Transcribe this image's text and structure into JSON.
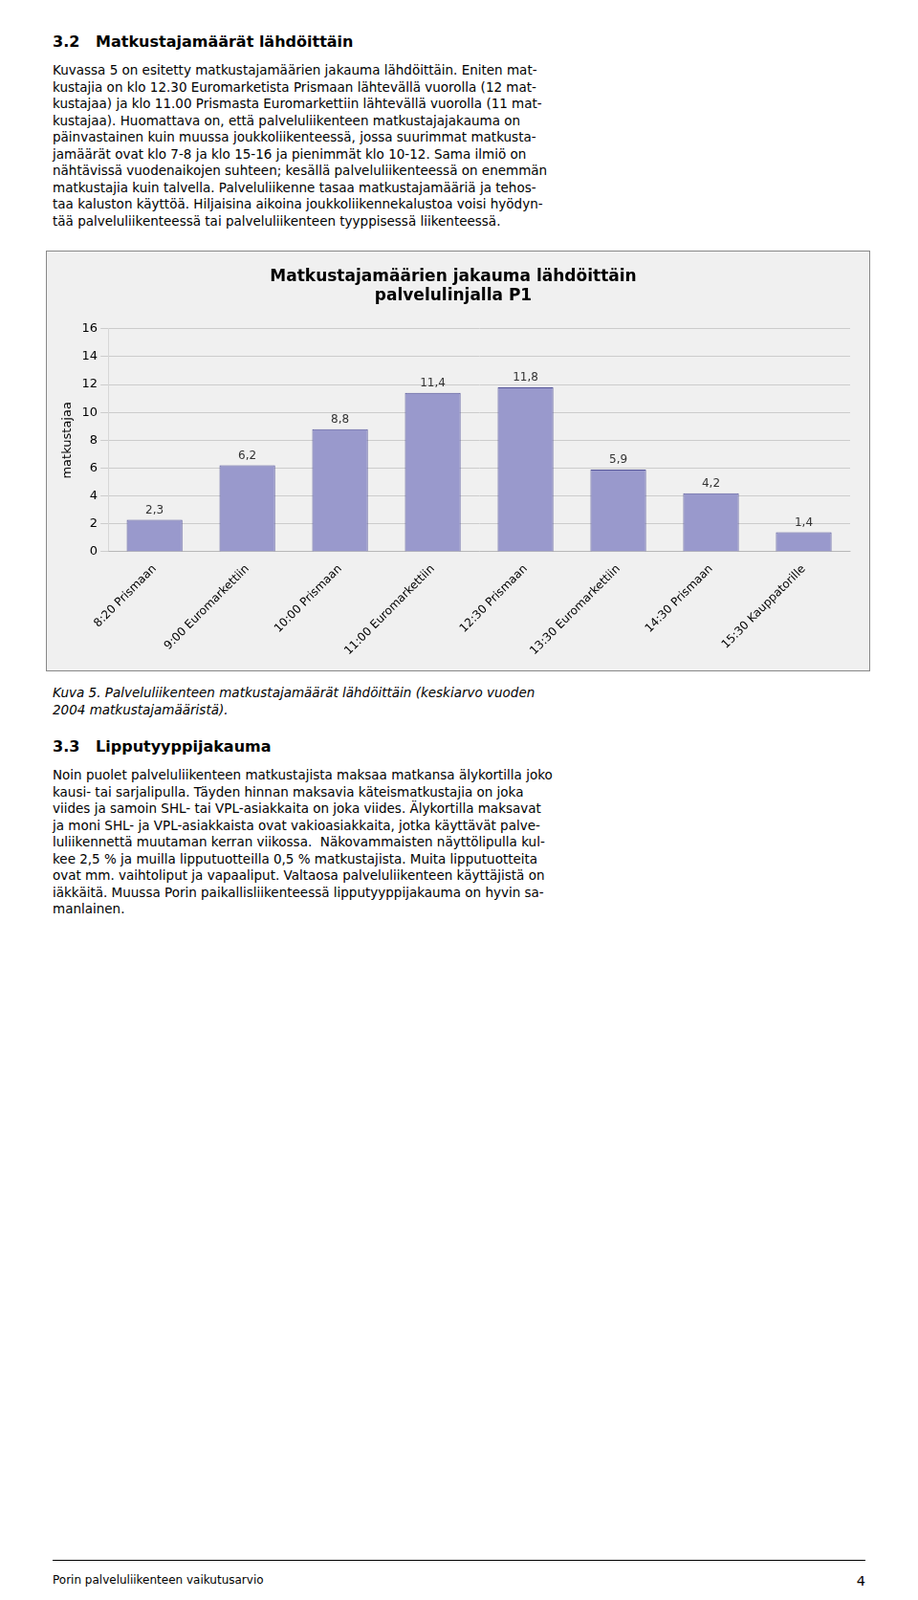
{
  "heading1": "3.2   Matkustajamäärät lähdöittäin",
  "para1": [
    "Kuvassa 5 on esitetty matkustajamäärien jakauma lähdöittäin. Eniten mat-",
    "kustajia on klo 12.30 Euromarketista Prismaan lähtevällä vuorolla (12 mat-",
    "kustajaa) ja klo 11.00 Prismasta Euromarkettiin lähtevällä vuorolla (11 mat-",
    "kustajaa). Huomattava on, että palveluliikenteen matkustajajakauma on",
    "päinvastainen kuin muussa joukkoliikenteessä, jossa suurimmat matkusta-",
    "jamäärät ovat klo 7-8 ja klo 15-16 ja pienimmät klo 10-12. Sama ilmiö on",
    "nähtävissä vuodenaikojen suhteen; kesällä palveluliikenteessä on enemmän",
    "matkustajia kuin talvella. Palveluliikenne tasaa matkustajamääriä ja tehos-",
    "taa kaluston käyttöä. Hiljaisina aikoina joukkoliikennekalustoa voisi hyödyn-",
    "tää palveluliikenteessä tai palveluliikenteen tyyppisessä liikenteessä."
  ],
  "chart_data": {
    "type": "bar",
    "title": "Matkustajamäärien jakauma lähdöittäin\npalvelulinjalla P1",
    "ylabel": "matkustajaa",
    "categories": [
      "8:20 Prismaan",
      "9:00 Euromarkettiin",
      "10:00 Prismaan",
      "11:00 Euromarkettiin",
      "12:30 Prismaan",
      "13:30 Euromarkettiin",
      "14:30 Prismaan",
      "15:30 Kauppatorille"
    ],
    "values": [
      2.3,
      6.2,
      8.8,
      11.4,
      11.8,
      5.9,
      4.2,
      1.4
    ],
    "value_labels": [
      "2,3",
      "6,2",
      "8,8",
      "11,4",
      "11,8",
      "5,9",
      "4,2",
      "1,4"
    ],
    "data_labels": true,
    "color": "#9999cc",
    "ylim": [
      0,
      16
    ],
    "yticks": [
      0,
      2,
      4,
      6,
      8,
      10,
      12,
      14,
      16
    ],
    "grid": true
  },
  "caption_line1": "Kuva 5. Palveluliikenteen matkustajamäärät lähdöittäin (keskiarvo vuoden",
  "caption_line2": "2004 matkustajamääristä).",
  "heading2": "3.3   Lipputyyppijakauma",
  "para2": [
    "Noin puolet palveluliikenteen matkustajista maksaa matkansa älykortilla joko",
    "kausi- tai sarjalipulla. Täyden hinnan maksavia käteismatkustajia on joka",
    "viides ja samoin SHL- tai VPL-asiakkaita on joka viides. Älykortilla maksavat",
    "ja moni SHL- ja VPL-asiakkaista ovat vakioasiakkaita, jotka käyttävät palve-",
    "luliikennettä muutaman kerran viikossa.  Näkovammaisten näyttölipulla kul-",
    "kee 2,5 % ja muilla lipputuotteilla 0,5 % matkustajista. Muita lipputuotteita",
    "ovat mm. vaihtoliput ja vapaaliput. Valtaosa palveluliikenteen käyttäjistä on",
    "iäkkäitä. Muussa Porin paikallisliikenteessä lipputyyppijakauma on hyvin sa-",
    "manlainen."
  ],
  "footer_left": "Porin palveluliikenteen vaikutusarvio",
  "footer_right": "4"
}
